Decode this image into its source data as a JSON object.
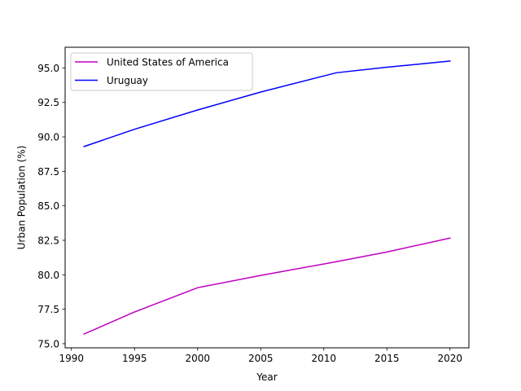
{
  "chart_data": {
    "type": "line",
    "title": "",
    "xlabel": "Year",
    "ylabel": "Urban Population (%)",
    "xlim": [
      1989.5,
      2021.5
    ],
    "ylim": [
      74.7,
      96.5
    ],
    "xticks": [
      1990,
      1995,
      2000,
      2005,
      2010,
      2015,
      2020
    ],
    "xtick_labels": [
      "1990",
      "1995",
      "2000",
      "2005",
      "2010",
      "2015",
      "2020"
    ],
    "yticks": [
      75.0,
      77.5,
      80.0,
      82.5,
      85.0,
      87.5,
      90.0,
      92.5,
      95.0
    ],
    "ytick_labels": [
      "75.0",
      "77.5",
      "80.0",
      "82.5",
      "85.0",
      "87.5",
      "90.0",
      "92.5",
      "95.0"
    ],
    "grid": false,
    "legend_position": "top-left",
    "series": [
      {
        "name": "United States of America",
        "color": "#bf00bf",
        "x": [
          1991,
          1995,
          2000,
          2005,
          2011,
          2015,
          2020
        ],
        "y": [
          75.7,
          77.3,
          79.06,
          79.95,
          80.95,
          81.65,
          82.66
        ]
      },
      {
        "name": "Uruguay",
        "color": "#0000ff",
        "x": [
          1991,
          1995,
          2000,
          2005,
          2011,
          2015,
          2020
        ],
        "y": [
          89.3,
          90.55,
          91.95,
          93.25,
          94.65,
          95.05,
          95.5
        ]
      }
    ]
  }
}
